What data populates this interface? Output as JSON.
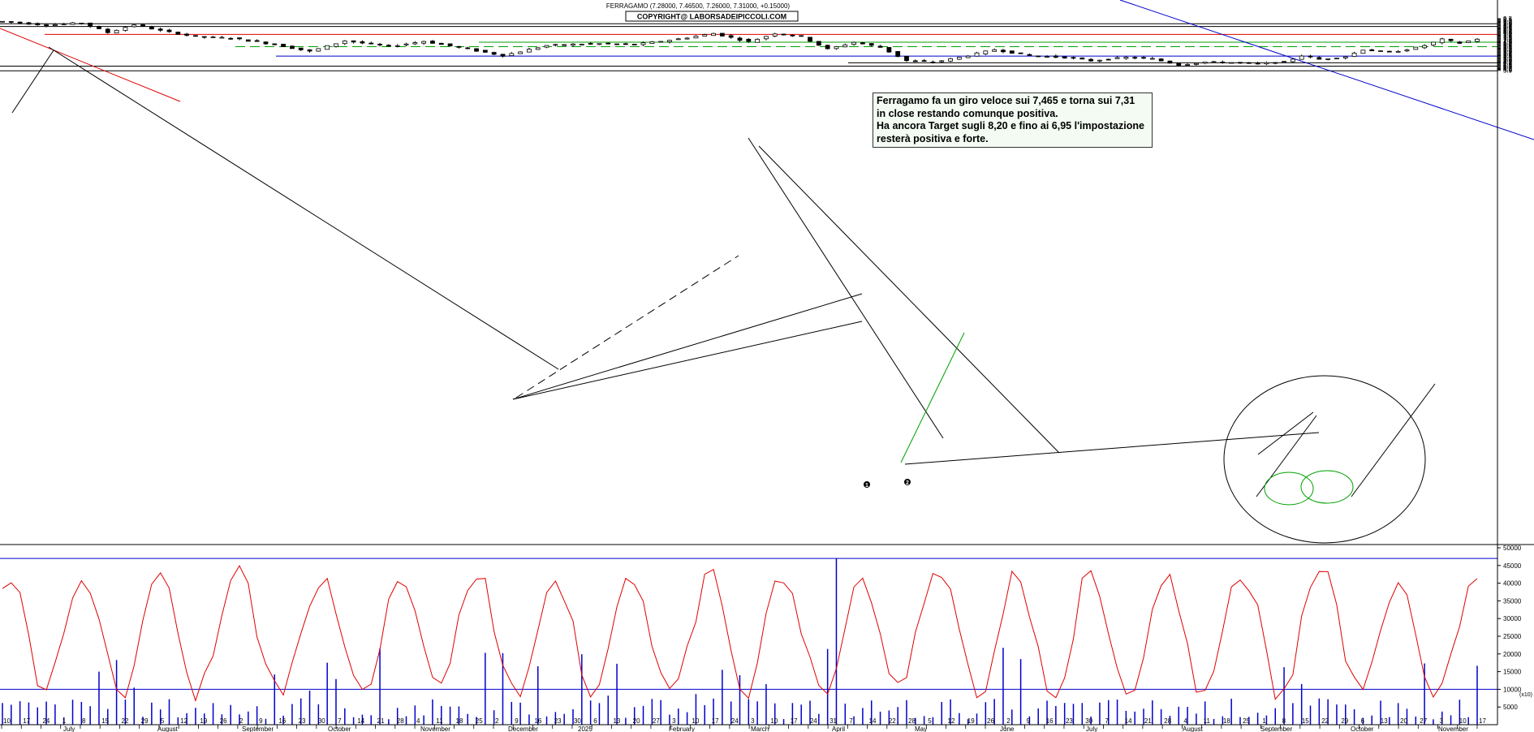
{
  "chart_data": {
    "type": "candlestick",
    "title": "FERRAGAMO (7.28000, 7.46500, 7.26000, 7.31000, +0.15000)",
    "copyright": "COPYRIGHT@ LABORSADEIPICCOLI.COM",
    "price_axis": {
      "min": 3.8,
      "max": 9.5,
      "step": 0.1
    },
    "price_ticks": [
      "9.5",
      "9.4",
      "9.3",
      "9.2",
      "9.1",
      "9.0",
      "8.9",
      "8.8",
      "8.7",
      "8.6",
      "8.5",
      "8.4",
      "8.3",
      "8.2",
      "8.1",
      "8.0",
      "7.9",
      "7.8",
      "7.7",
      "7.6",
      "7.5",
      "7.4",
      "7.3",
      "7.2",
      "7.1",
      "7.0",
      "6.9",
      "6.8",
      "6.7",
      "6.6",
      "6.5",
      "6.4",
      "6.3",
      "6.2",
      "6.1",
      "6.0",
      "5.9",
      "5.8",
      "5.7",
      "5.6",
      "5.5",
      "5.4",
      "5.3",
      "5.2",
      "5.1",
      "5.0",
      "4.9",
      "4.8",
      "4.7",
      "4.6",
      "4.5",
      "4.4",
      "4.3",
      "4.2",
      "4.1",
      "4.0",
      "3.9"
    ],
    "volume_axis": {
      "min": 0,
      "max": 50000
    },
    "volume_ticks": [
      "50000",
      "45000",
      "40000",
      "35000",
      "30000",
      "25000",
      "20000",
      "15000",
      "10000",
      "5000"
    ],
    "volume_unit_label": "(x10)",
    "horizontal_levels": [
      {
        "price": 8.95,
        "color": "#000000",
        "style": "solid"
      },
      {
        "price": 8.65,
        "color": "#000000",
        "style": "solid"
      },
      {
        "price": 7.8,
        "color": "#e00000",
        "style": "solid"
      },
      {
        "price": 6.95,
        "color": "#00a000",
        "style": "solid"
      },
      {
        "price": 6.47,
        "color": "#00a000",
        "style": "dashed"
      },
      {
        "price": 5.45,
        "color": "#0000cc",
        "style": "solid"
      },
      {
        "price": 4.72,
        "color": "#000000",
        "style": "solid"
      },
      {
        "price": 4.36,
        "color": "#000000",
        "style": "solid"
      },
      {
        "price": 3.85,
        "color": "#000000",
        "style": "solid"
      }
    ],
    "volume_levels": [
      {
        "value": 47000,
        "color": "#0000cc"
      },
      {
        "value": 10000,
        "color": "#0000cc"
      }
    ],
    "x_day_labels": [
      "10",
      "17",
      "24",
      "1",
      "8",
      "15",
      "22",
      "29",
      "5",
      "12",
      "19",
      "26",
      "2",
      "9",
      "16",
      "23",
      "30",
      "7",
      "14",
      "21",
      "28",
      "4",
      "11",
      "18",
      "25",
      "2",
      "9",
      "16",
      "23",
      "30",
      "6",
      "13",
      "20",
      "27",
      "3",
      "10",
      "17",
      "24",
      "3",
      "10",
      "17",
      "24",
      "31",
      "7",
      "14",
      "22",
      "28",
      "5",
      "12",
      "19",
      "26",
      "2",
      "9",
      "16",
      "23",
      "30",
      "7",
      "14",
      "21",
      "28",
      "4",
      "11",
      "18",
      "25",
      "1",
      "8",
      "15",
      "22",
      "29",
      "6",
      "13",
      "20",
      "27",
      "3",
      "10",
      "17"
    ],
    "x_month_labels": [
      "July",
      "August",
      "September",
      "October",
      "November",
      "December",
      "2025",
      "February",
      "March",
      "April",
      "May",
      "June",
      "July",
      "August",
      "September",
      "October",
      "November"
    ],
    "markers": [
      "1",
      "2"
    ],
    "series_colors": {
      "candles": "#000000",
      "oscillator": "#e00000",
      "volume": "#0000cc"
    },
    "annotation": {
      "lines": [
        "Ferragamo fa un giro veloce sui 7,465 e torna sui 7,31",
        "in close restando comunque positiva.",
        "Ha ancora Target sugli 8,20 e fino ai 6,95 l'impostazione",
        "resterà positiva e forte."
      ]
    },
    "price_path_keypoints": [
      [
        0,
        9.2
      ],
      [
        5,
        8.8
      ],
      [
        9,
        9.05
      ],
      [
        12,
        8.0
      ],
      [
        15,
        8.85
      ],
      [
        18,
        8.2
      ],
      [
        22,
        7.55
      ],
      [
        26,
        7.4
      ],
      [
        31,
        6.7
      ],
      [
        35,
        5.95
      ],
      [
        39,
        7.1
      ],
      [
        44,
        6.5
      ],
      [
        48,
        7.05
      ],
      [
        53,
        6.2
      ],
      [
        57,
        5.5
      ],
      [
        62,
        6.6
      ],
      [
        67,
        6.8
      ],
      [
        72,
        6.7
      ],
      [
        77,
        7.3
      ],
      [
        81,
        7.9
      ],
      [
        85,
        7.0
      ],
      [
        88,
        7.9
      ],
      [
        91,
        7.55
      ],
      [
        94,
        6.2
      ],
      [
        97,
        6.95
      ],
      [
        100,
        6.4
      ],
      [
        103,
        4.95
      ],
      [
        106,
        4.78
      ],
      [
        109,
        5.3
      ],
      [
        113,
        6.15
      ],
      [
        117,
        5.5
      ],
      [
        121,
        5.3
      ],
      [
        124,
        4.95
      ],
      [
        128,
        5.3
      ],
      [
        131,
        5.15
      ],
      [
        134,
        4.5
      ],
      [
        137,
        4.8
      ],
      [
        140,
        4.75
      ],
      [
        143,
        4.62
      ],
      [
        146,
        4.8
      ],
      [
        148,
        5.5
      ],
      [
        150,
        5.1
      ],
      [
        153,
        5.4
      ],
      [
        155,
        6.15
      ],
      [
        158,
        5.85
      ],
      [
        161,
        6.35
      ],
      [
        162,
        6.6
      ],
      [
        164,
        7.25
      ],
      [
        166,
        6.85
      ],
      [
        168,
        7.31
      ]
    ]
  }
}
